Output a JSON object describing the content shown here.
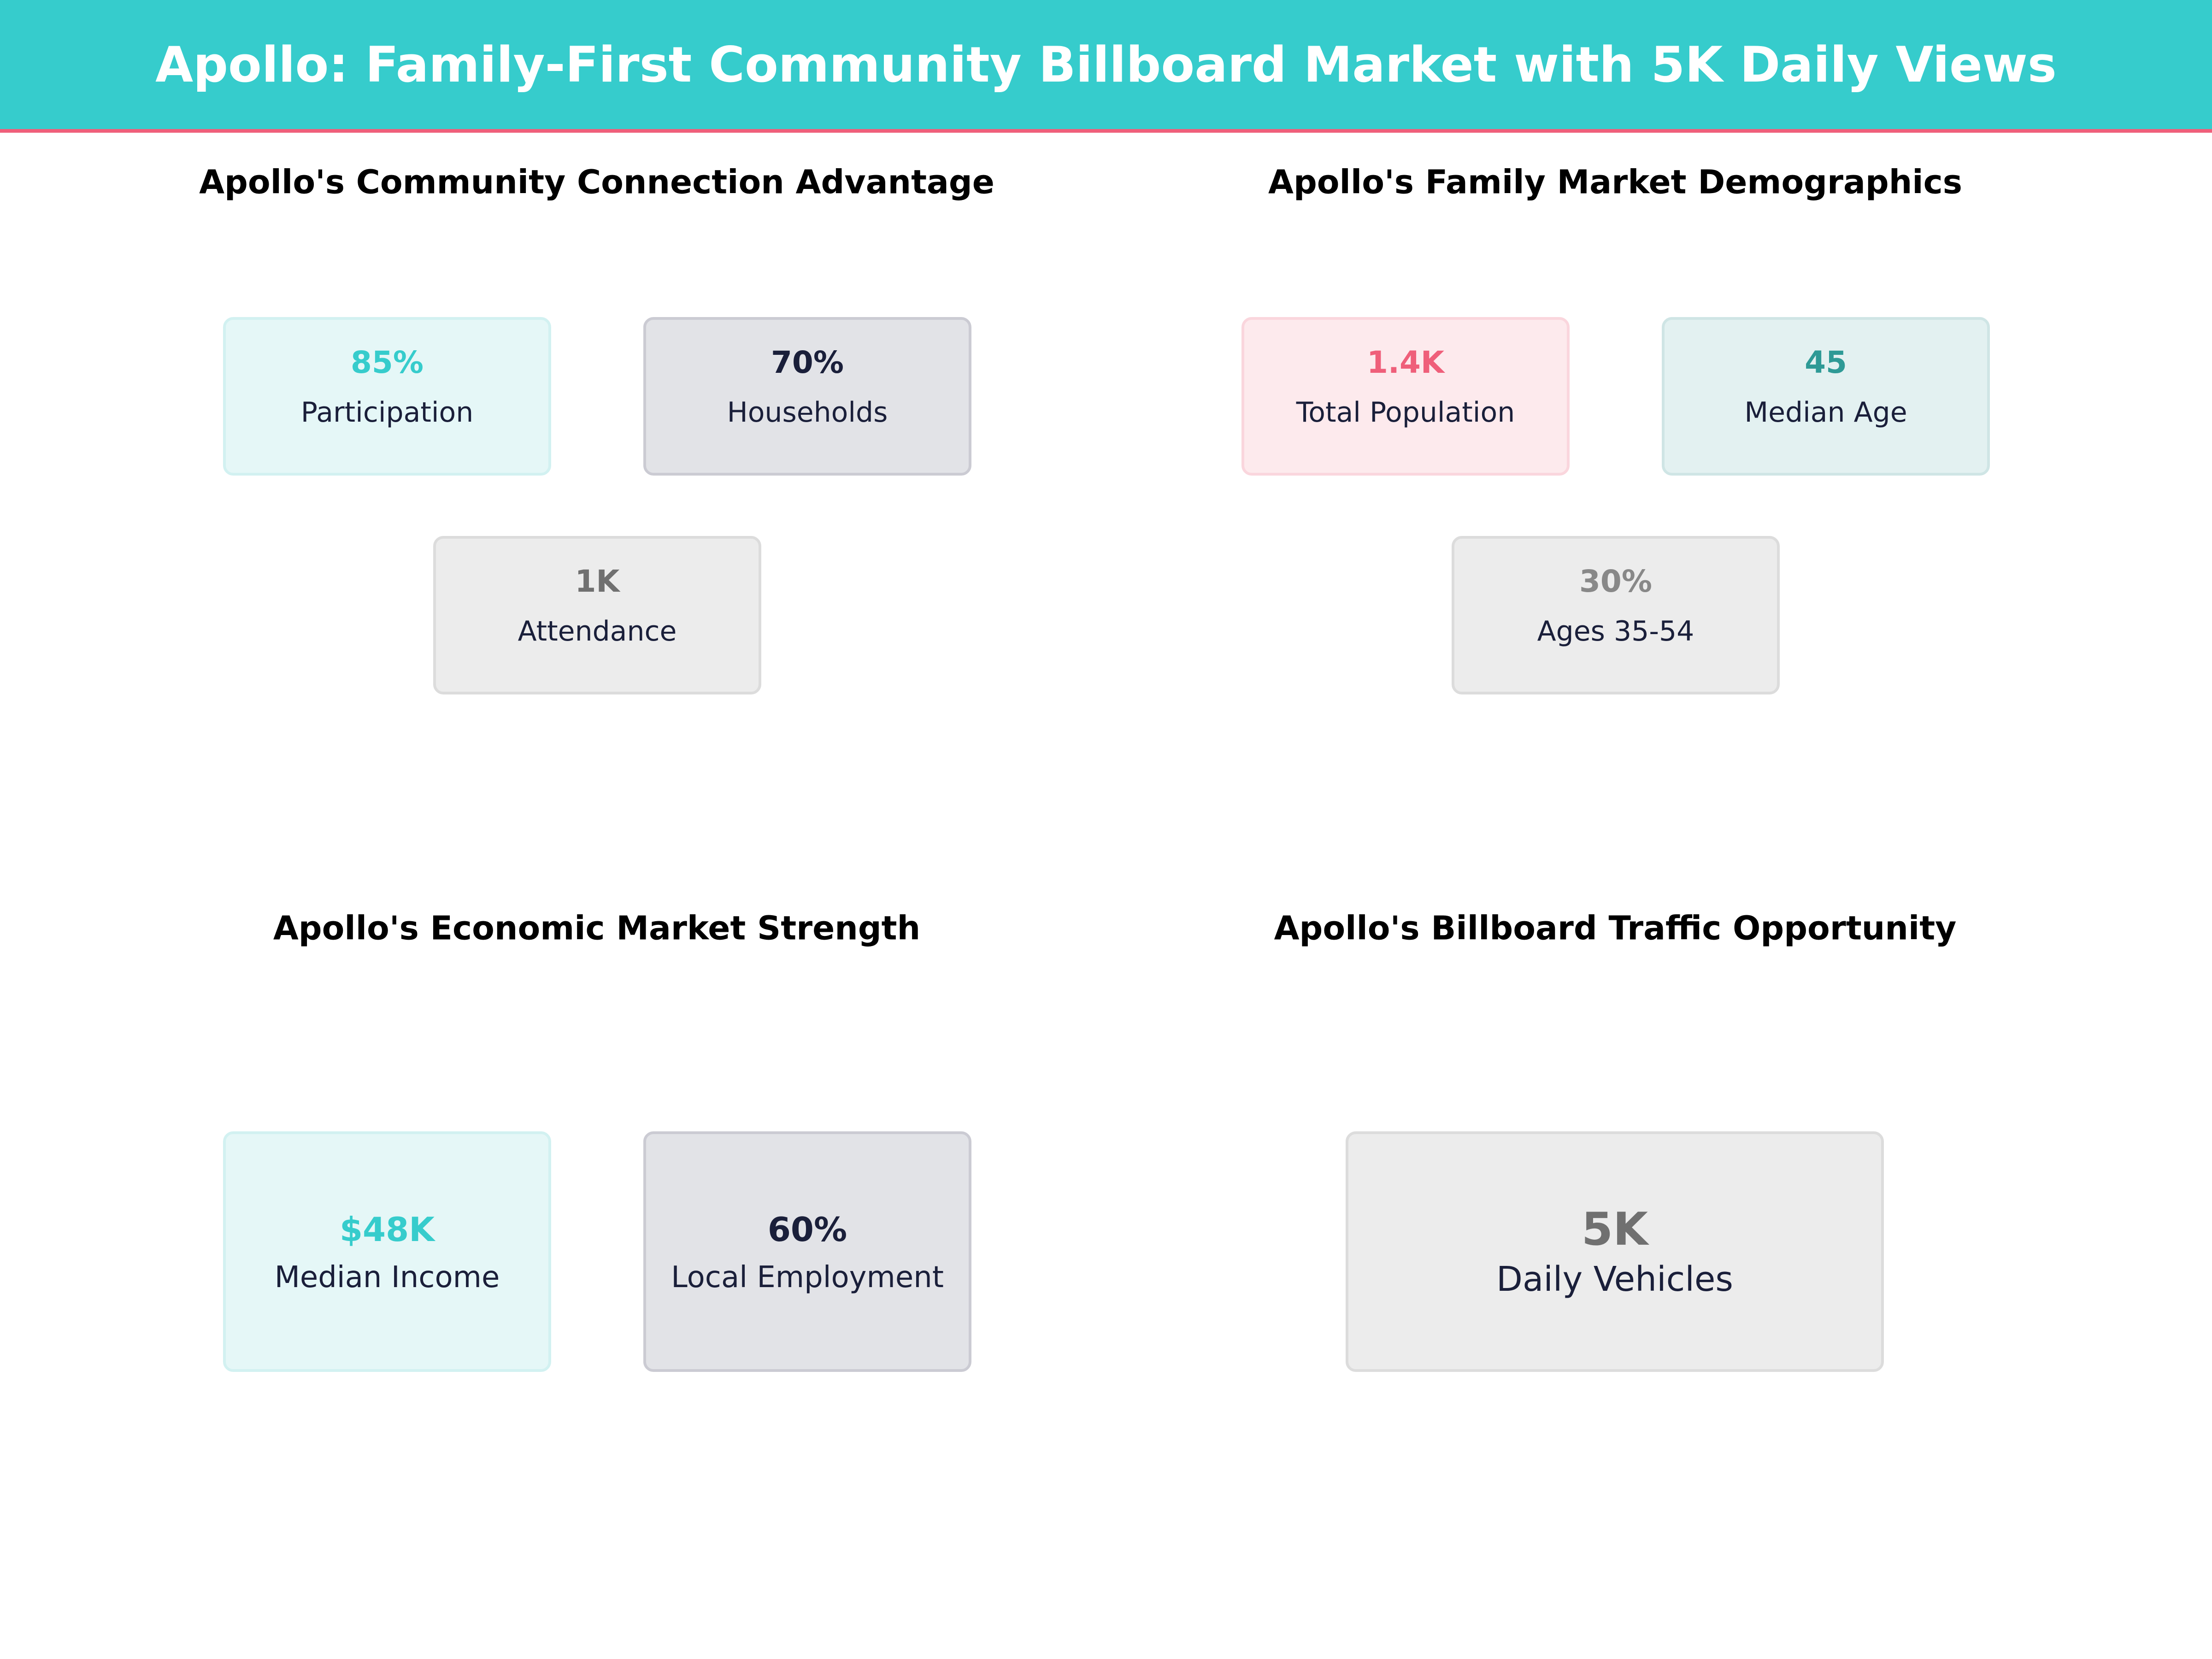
{
  "header": {
    "title": "Apollo: Family-First Community Billboard Market with 5K Daily Views"
  },
  "colors": {
    "header_bg": "#36cccc",
    "accent_line": "#ef5f7a",
    "teal": "#36cccc",
    "navy": "#1a1f3a",
    "gray": "#707070",
    "pink": "#ef5f7a",
    "dark_teal": "#2e9a96"
  },
  "panels": [
    {
      "title": "Apollo's Community Connection Advantage",
      "cards": [
        {
          "value": "85%",
          "label": "Participation"
        },
        {
          "value": "70%",
          "label": "Households"
        },
        {
          "value": "1K",
          "label": "Attendance"
        }
      ]
    },
    {
      "title": "Apollo's Family Market Demographics",
      "cards": [
        {
          "value": "1.4K",
          "label": "Total Population"
        },
        {
          "value": "45",
          "label": "Median Age"
        },
        {
          "value": "30%",
          "label": "Ages 35-54"
        }
      ]
    },
    {
      "title": "Apollo's Economic Market Strength",
      "cards": [
        {
          "value": "$48K",
          "label": "Median Income"
        },
        {
          "value": "60%",
          "label": "Local Employment"
        }
      ]
    },
    {
      "title": "Apollo's Billboard Traffic Opportunity",
      "cards": [
        {
          "value": "5K",
          "label": "Daily Vehicles"
        }
      ]
    }
  ]
}
